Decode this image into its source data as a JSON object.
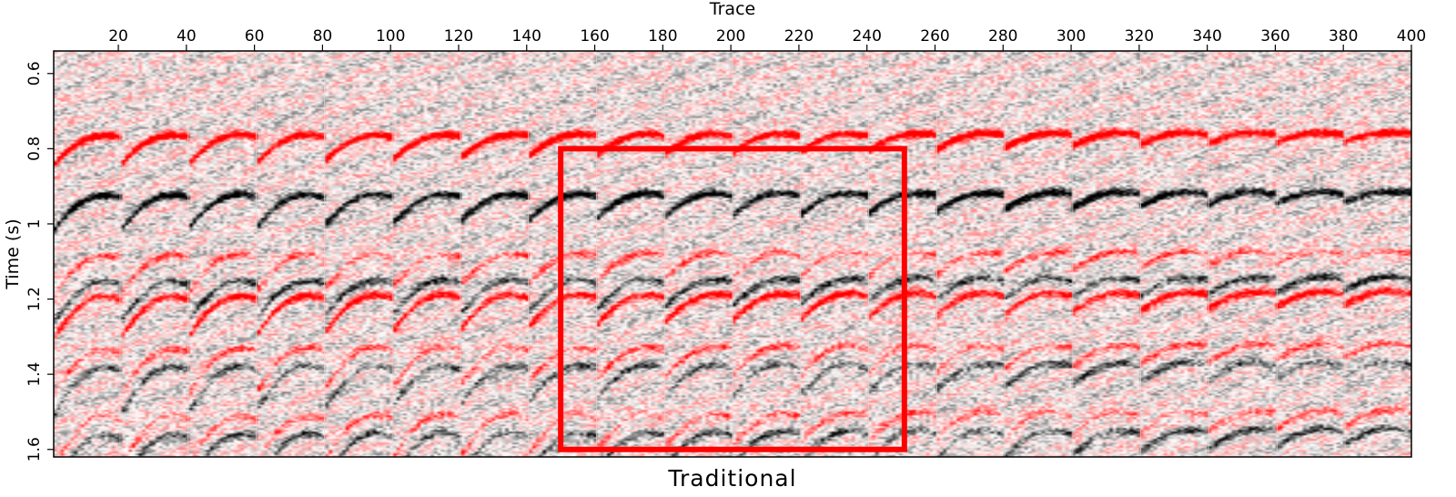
{
  "chart_data": {
    "type": "heatmap",
    "title": "",
    "caption": "Traditional",
    "xlabel": "Trace",
    "ylabel": "Time (s)",
    "xlim": [
      1,
      400
    ],
    "ylim": [
      0.54,
      1.62
    ],
    "y_inverted": true,
    "x_axis_position": "top",
    "x_ticks": [
      20,
      40,
      60,
      80,
      100,
      120,
      140,
      160,
      180,
      200,
      220,
      240,
      260,
      280,
      300,
      320,
      340,
      360,
      380,
      400
    ],
    "x_tick_labels": [
      "20",
      "40",
      "60",
      "80",
      "100",
      "120",
      "140",
      "160",
      "180",
      "200",
      "220",
      "240",
      "260",
      "280",
      "300",
      "320",
      "340",
      "360",
      "380",
      "400"
    ],
    "y_ticks": [
      0.6,
      0.8,
      1.0,
      1.2,
      1.4,
      1.6
    ],
    "y_tick_labels": [
      "0.6",
      "0.8",
      "1",
      "1.2",
      "1.4",
      "1.6"
    ],
    "colormap": {
      "negative": "#000000",
      "zero": "#ffffff",
      "positive": "#ff0000"
    },
    "gathers": {
      "count": 20,
      "traces_per_gather": 20
    },
    "events": [
      {
        "time": 0.77,
        "polarity": "positive",
        "strength": 1.0
      },
      {
        "time": 0.93,
        "polarity": "negative",
        "strength": 0.85
      },
      {
        "time": 1.2,
        "polarity": "positive",
        "strength": 0.8
      },
      {
        "time": 1.16,
        "polarity": "negative",
        "strength": 0.55
      },
      {
        "time": 1.09,
        "polarity": "positive",
        "strength": 0.45
      },
      {
        "time": 1.34,
        "polarity": "positive",
        "strength": 0.45
      },
      {
        "time": 1.39,
        "polarity": "negative",
        "strength": 0.45
      },
      {
        "time": 1.52,
        "polarity": "positive",
        "strength": 0.4
      },
      {
        "time": 1.57,
        "polarity": "negative",
        "strength": 0.5
      }
    ],
    "highlight_box": {
      "trace_range": [
        150,
        251
      ],
      "time_range": [
        0.8,
        1.6
      ],
      "color": "#ff0000"
    }
  }
}
